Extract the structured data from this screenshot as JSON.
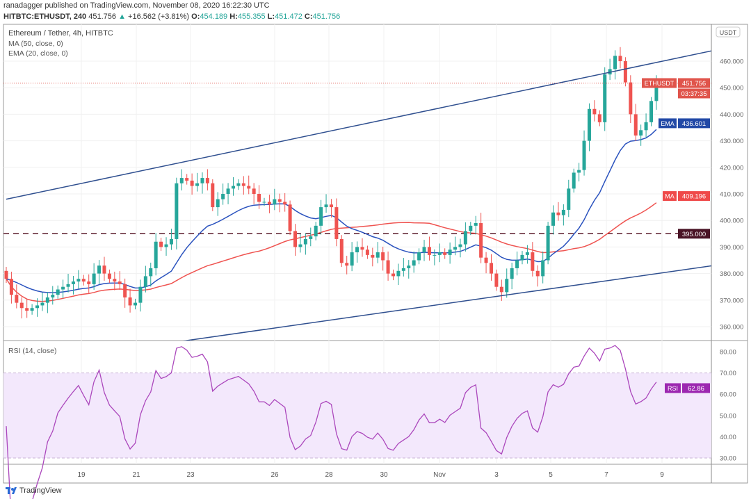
{
  "header": {
    "publisher": "ranadagger published on TradingView.com, November 08, 2020 16:22:30 UTC",
    "symbol": "HITBTC:ETHUSDT, 240",
    "last": "451.756",
    "change": "+16.562 (+3.81%)",
    "open_label": "O:",
    "open": "454.189",
    "high_label": "H:",
    "high": "455.355",
    "low_label": "L:",
    "low": "451.472",
    "close_label": "C:",
    "close": "451.756"
  },
  "legend": {
    "title": "Ethereum / Tether, 4h, HITBTC",
    "ma": "MA (50, close, 0)",
    "ema": "EMA (20, close, 0)",
    "rsi": "RSI (14, close)"
  },
  "footer": {
    "logo": "TradingView"
  },
  "colors": {
    "up": "#26a69a",
    "down": "#ef5350",
    "ema": "#2a52be",
    "ma": "#ef5350",
    "rsi": "#ab47bc",
    "trend": "#2f4f8f",
    "level": "#5a1a2a"
  },
  "chart_data": [
    {
      "type": "candlestick",
      "title": "Ethereum / Tether, 4h, HITBTC",
      "currency": "USDT",
      "ylim": [
        352,
        470
      ],
      "yticks": [
        360,
        370,
        380,
        390,
        400,
        410,
        420,
        430,
        440,
        450,
        460
      ],
      "ytick_labels": [
        "360.000",
        "370.000",
        "380.000",
        "390.000",
        "400.000",
        "410.000",
        "420.000",
        "430.000",
        "440.000",
        "450.000",
        "460.000"
      ],
      "xtick_labels": [
        "19",
        "21",
        "23",
        "26",
        "28",
        "30",
        "Nov",
        "3",
        "5",
        "7",
        "9"
      ],
      "closes": [
        378,
        372,
        369,
        367,
        366,
        367,
        368,
        369,
        371,
        372,
        374,
        375,
        376,
        377,
        378,
        377,
        376,
        380,
        383,
        380,
        378,
        377,
        376,
        371,
        368,
        369,
        375,
        379,
        382,
        392,
        390,
        391,
        393,
        414,
        416,
        415,
        413,
        414,
        416,
        414,
        405,
        408,
        410,
        412,
        413,
        414,
        413,
        412,
        410,
        407,
        407,
        406,
        408,
        407,
        406,
        396,
        390,
        391,
        393,
        394,
        398,
        405,
        406,
        405,
        393,
        384,
        383,
        388,
        390,
        389,
        387,
        386,
        388,
        385,
        380,
        379,
        381,
        382,
        383,
        385,
        388,
        390,
        387,
        387,
        388,
        387,
        389,
        390,
        391,
        396,
        398,
        399,
        386,
        384,
        380,
        375,
        373,
        378,
        382,
        385,
        387,
        388,
        381,
        379,
        385,
        398,
        403,
        402,
        404,
        412,
        418,
        419,
        430,
        442,
        440,
        437,
        455,
        457,
        462,
        460,
        452,
        440,
        432,
        434,
        437,
        445,
        452
      ],
      "indicators": {
        "ma_period": 50,
        "ema_period": 20,
        "rsi_period": 14
      },
      "trendlines": [
        {
          "name": "upper channel",
          "from": {
            "candle": 0,
            "price": 408
          },
          "to": {
            "candle": 137,
            "price": 464
          }
        },
        {
          "name": "lower channel",
          "from": {
            "candle": 34,
            "price": 354.5
          },
          "to": {
            "candle": 137,
            "price": 383
          }
        }
      ],
      "horizontal_level": 395,
      "price_labels": [
        {
          "label": "ETHUSDT",
          "value": "451.756",
          "extra": "03:37:35",
          "price": 451.756,
          "color": "#e0544b"
        },
        {
          "label": "EMA",
          "value": "436.601",
          "price": 436.601,
          "color": "#2249a6"
        },
        {
          "label": "MA",
          "value": "409.196",
          "price": 409.196,
          "color": "#ef4a4a"
        },
        {
          "label": "",
          "value": "395.000",
          "price": 395,
          "color": "#4a1426"
        }
      ]
    },
    {
      "type": "line",
      "title": "RSI (14, close)",
      "ylim": [
        27,
        84
      ],
      "band": [
        30,
        70
      ],
      "yticks": [
        30,
        40,
        50,
        60,
        70,
        80
      ],
      "ytick_labels": [
        "30.00",
        "40.00",
        "50.00",
        "60.00",
        "70.00",
        "80.00"
      ],
      "last_label": {
        "label": "RSI",
        "value": "62.86",
        "price": 62.86
      }
    }
  ]
}
